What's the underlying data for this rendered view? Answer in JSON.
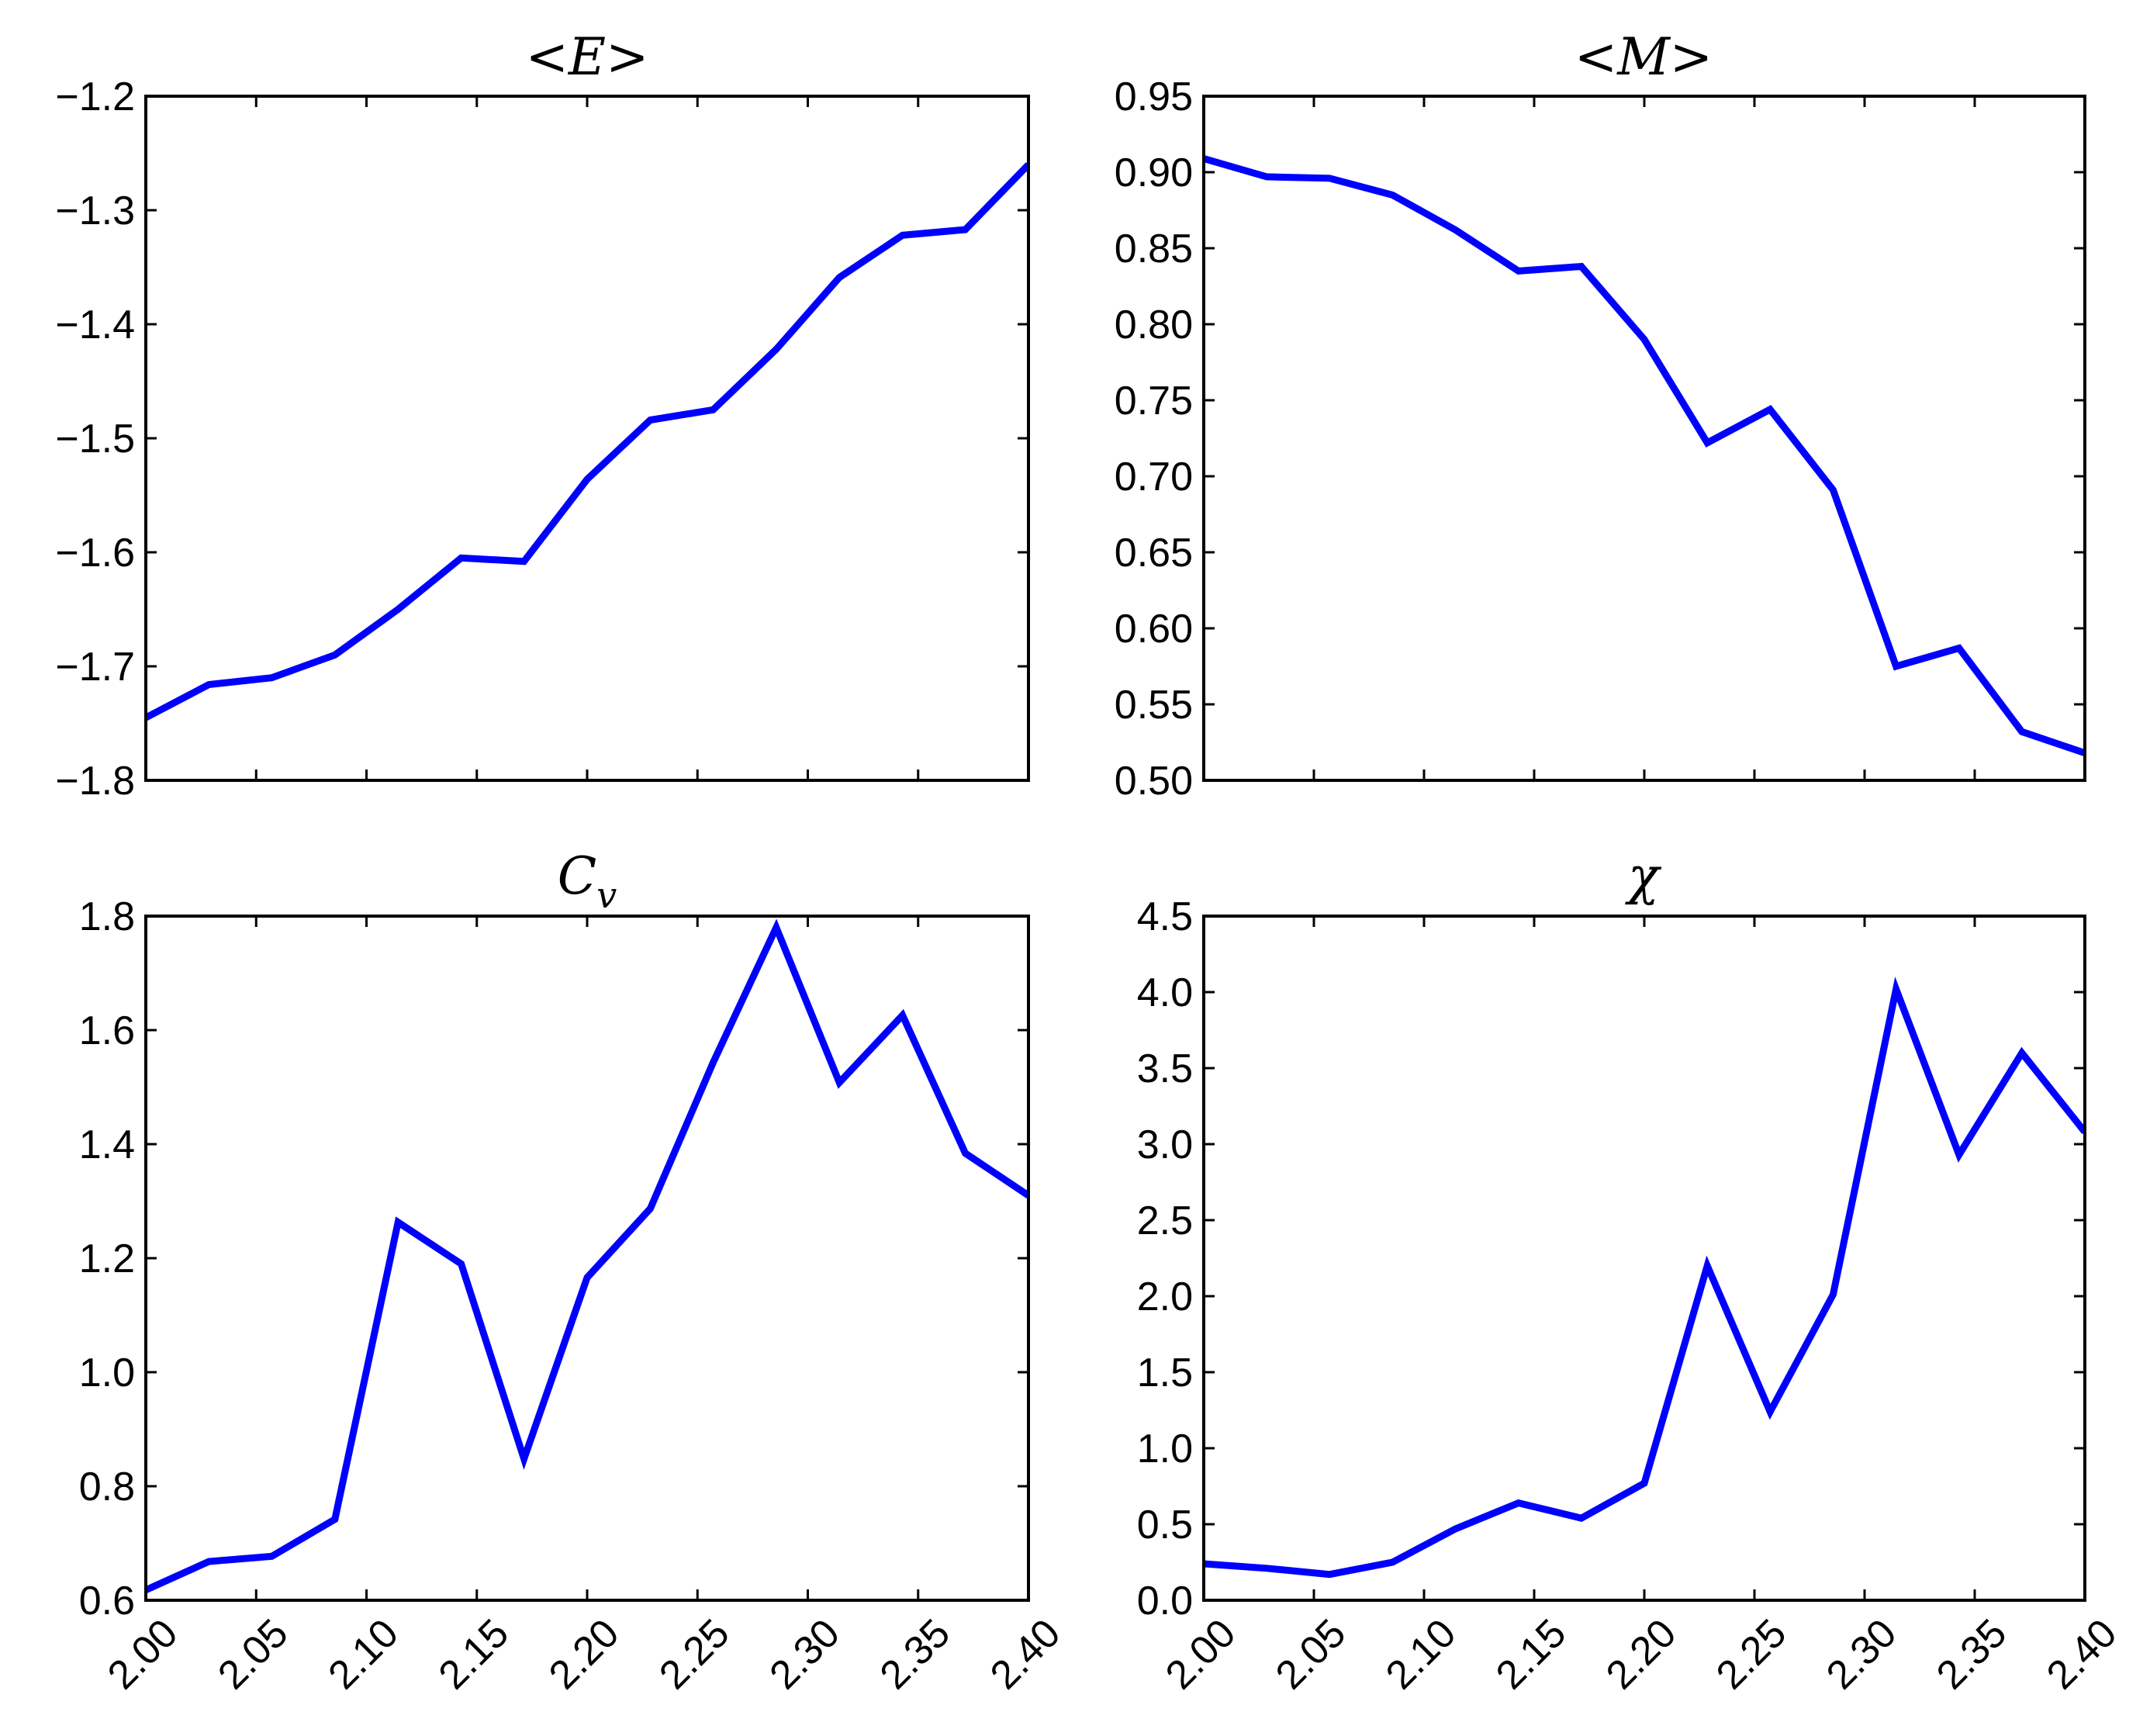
{
  "chart_data": [
    {
      "type": "line",
      "title": "<E>",
      "xlabel": "",
      "ylabel": "",
      "xlim": [
        2.0,
        2.4
      ],
      "ylim": [
        -1.8,
        -1.2
      ],
      "x_ticks": [
        "2.00",
        "2.05",
        "2.10",
        "2.15",
        "2.20",
        "2.25",
        "2.30",
        "2.35",
        "2.40"
      ],
      "x_tick_values": [
        2.0,
        2.05,
        2.1,
        2.15,
        2.2,
        2.25,
        2.3,
        2.35,
        2.4
      ],
      "show_x_tick_labels": false,
      "y_ticks": [
        "−1.2",
        "−1.3",
        "−1.4",
        "−1.5",
        "−1.6",
        "−1.7",
        "−1.8"
      ],
      "y_tick_values": [
        -1.2,
        -1.3,
        -1.4,
        -1.5,
        -1.6,
        -1.7,
        -1.8
      ],
      "grid": false,
      "color": "#0000ff",
      "x": [
        2.0,
        2.0286,
        2.0571,
        2.0857,
        2.1143,
        2.1429,
        2.1714,
        2.2,
        2.2286,
        2.2571,
        2.2857,
        2.3143,
        2.3429,
        2.3714,
        2.4
      ],
      "y": [
        -1.745,
        -1.716,
        -1.71,
        -1.69,
        -1.65,
        -1.605,
        -1.608,
        -1.536,
        -1.484,
        -1.475,
        -1.422,
        -1.359,
        -1.322,
        -1.317,
        -1.26
      ]
    },
    {
      "type": "line",
      "title": "<M>",
      "xlabel": "",
      "ylabel": "",
      "xlim": [
        2.0,
        2.4
      ],
      "ylim": [
        0.5,
        0.95
      ],
      "x_ticks": [
        "2.00",
        "2.05",
        "2.10",
        "2.15",
        "2.20",
        "2.25",
        "2.30",
        "2.35",
        "2.40"
      ],
      "x_tick_values": [
        2.0,
        2.05,
        2.1,
        2.15,
        2.2,
        2.25,
        2.3,
        2.35,
        2.4
      ],
      "show_x_tick_labels": false,
      "y_ticks": [
        "0.95",
        "0.90",
        "0.85",
        "0.80",
        "0.75",
        "0.70",
        "0.65",
        "0.60",
        "0.55",
        "0.50"
      ],
      "y_tick_values": [
        0.95,
        0.9,
        0.85,
        0.8,
        0.75,
        0.7,
        0.65,
        0.6,
        0.55,
        0.5
      ],
      "grid": false,
      "color": "#0000ff",
      "x": [
        2.0,
        2.0286,
        2.0571,
        2.0857,
        2.1143,
        2.1429,
        2.1714,
        2.2,
        2.2286,
        2.2571,
        2.2857,
        2.3143,
        2.3429,
        2.3714,
        2.4
      ],
      "y": [
        0.909,
        0.897,
        0.896,
        0.885,
        0.862,
        0.835,
        0.838,
        0.79,
        0.722,
        0.744,
        0.691,
        0.575,
        0.587,
        0.532,
        0.518
      ]
    },
    {
      "type": "line",
      "title": "C_v",
      "xlabel": "",
      "ylabel": "",
      "xlim": [
        2.0,
        2.4
      ],
      "ylim": [
        0.6,
        1.8
      ],
      "x_ticks": [
        "2.00",
        "2.05",
        "2.10",
        "2.15",
        "2.20",
        "2.25",
        "2.30",
        "2.35",
        "2.40"
      ],
      "x_tick_values": [
        2.0,
        2.05,
        2.1,
        2.15,
        2.2,
        2.25,
        2.3,
        2.35,
        2.4
      ],
      "show_x_tick_labels": true,
      "y_ticks": [
        "1.8",
        "1.6",
        "1.4",
        "1.2",
        "1.0",
        "0.8",
        "0.6"
      ],
      "y_tick_values": [
        1.8,
        1.6,
        1.4,
        1.2,
        1.0,
        0.8,
        0.6
      ],
      "grid": false,
      "color": "#0000ff",
      "x": [
        2.0,
        2.0286,
        2.0571,
        2.0857,
        2.1143,
        2.1429,
        2.1714,
        2.2,
        2.2286,
        2.2571,
        2.2857,
        2.3143,
        2.3429,
        2.3714,
        2.4
      ],
      "y": [
        0.618,
        0.668,
        0.677,
        0.742,
        1.263,
        1.19,
        0.848,
        1.166,
        1.287,
        1.543,
        1.78,
        1.508,
        1.626,
        1.384,
        1.31
      ]
    },
    {
      "type": "line",
      "title": "χ",
      "xlabel": "",
      "ylabel": "",
      "xlim": [
        2.0,
        2.4
      ],
      "ylim": [
        0.0,
        4.5
      ],
      "x_ticks": [
        "2.00",
        "2.05",
        "2.10",
        "2.15",
        "2.20",
        "2.25",
        "2.30",
        "2.35",
        "2.40"
      ],
      "x_tick_values": [
        2.0,
        2.05,
        2.1,
        2.15,
        2.2,
        2.25,
        2.3,
        2.35,
        2.4
      ],
      "show_x_tick_labels": true,
      "y_ticks": [
        "4.5",
        "4.0",
        "3.5",
        "3.0",
        "2.5",
        "2.0",
        "1.5",
        "1.0",
        "0.5",
        "0.0"
      ],
      "y_tick_values": [
        4.5,
        4.0,
        3.5,
        3.0,
        2.5,
        2.0,
        1.5,
        1.0,
        0.5,
        0.0
      ],
      "grid": false,
      "color": "#0000ff",
      "x": [
        2.0,
        2.0286,
        2.0571,
        2.0857,
        2.1143,
        2.1429,
        2.1714,
        2.2,
        2.2286,
        2.2571,
        2.2857,
        2.3143,
        2.3429,
        2.3714,
        2.4
      ],
      "y": [
        0.24,
        0.21,
        0.17,
        0.25,
        0.47,
        0.64,
        0.54,
        0.77,
        2.2,
        1.24,
        2.01,
        4.02,
        2.93,
        3.6,
        3.08
      ]
    }
  ]
}
